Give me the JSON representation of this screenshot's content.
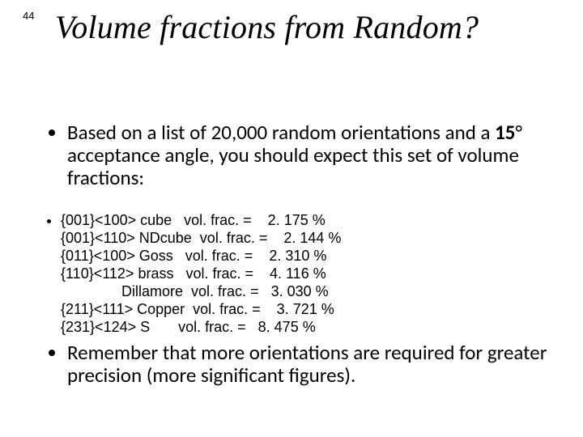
{
  "page_number": "44",
  "title": "Volume fractions from Random?",
  "bullet1_pre": "Based on a list of 20,000 random orientations and a ",
  "bullet1_angle": "15",
  "bullet1_deg": "°",
  "bullet1_post": " acceptance angle, you should expect this set of volume fractions:",
  "vf": {
    "line1": "{001}<100> cube   vol. frac. =    2. 175 %",
    "line2": "{001}<110> NDcube  vol. frac. =    2. 144 %",
    "line3": "{011}<100> Goss   vol. frac. =    2. 310 %",
    "line4": "{110}<112> brass   vol. frac. =    4. 116 %",
    "line5": "               Dillamore  vol. frac. =   3. 030 %",
    "line6": "{211}<111> Copper  vol. frac. =    3. 721 %",
    "line7": "{231}<124> S       vol. frac. =   8. 475 %"
  },
  "bullet2": "Remember that more orientations are required for greater precision (more significant figures)."
}
